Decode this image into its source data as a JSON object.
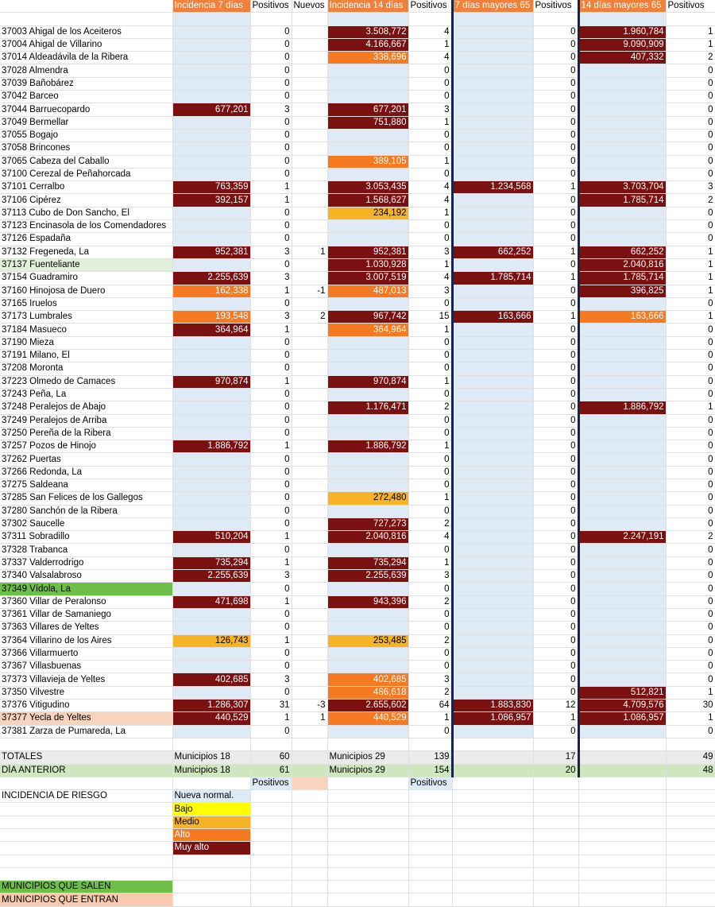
{
  "headers": [
    "",
    "Incidencia 7 días",
    "Positivos",
    "Nuevos",
    "Incidencia 14 días",
    "Positivos",
    "7 días mayores 65",
    "Positivos",
    "14 días mayores 65",
    "Positivos"
  ],
  "levels": {
    "nueva": "#deeaf6",
    "bajo": "#ffff00",
    "medio": "#f5b325",
    "alto": "#f57a22",
    "muyalto": "#7a1010"
  },
  "rows": [
    {
      "name": "37003 Ahigal de los Aceiteros",
      "i7": "",
      "l7": "",
      "p7": "0",
      "n": "",
      "i14": "3.508,772",
      "l14": "muyalto",
      "p14": "4",
      "m7": "",
      "lm7": "",
      "pm7": "0",
      "m14": "1.960,784",
      "lm14": "muyalto",
      "pm14": "1",
      "mark": ""
    },
    {
      "name": "37004 Ahigal de Villarino",
      "i7": "",
      "l7": "",
      "p7": "0",
      "n": "",
      "i14": "4.166,667",
      "l14": "muyalto",
      "p14": "1",
      "m7": "",
      "lm7": "",
      "pm7": "0",
      "m14": "9.090,909",
      "lm14": "muyalto",
      "pm14": "1",
      "mark": ""
    },
    {
      "name": "37014 Aldeadávila de la Ribera",
      "i7": "",
      "l7": "",
      "p7": "0",
      "n": "",
      "i14": "338,696",
      "l14": "alto",
      "p14": "4",
      "m7": "",
      "lm7": "",
      "pm7": "0",
      "m14": "407,332",
      "lm14": "muyalto",
      "pm14": "2",
      "mark": ""
    },
    {
      "name": "37028 Almendra",
      "i7": "",
      "l7": "",
      "p7": "0",
      "n": "",
      "i14": "",
      "l14": "",
      "p14": "0",
      "m7": "",
      "lm7": "",
      "pm7": "0",
      "m14": "",
      "lm14": "",
      "pm14": "0",
      "mark": ""
    },
    {
      "name": "37039 Bañobárez",
      "i7": "",
      "l7": "",
      "p7": "0",
      "n": "",
      "i14": "",
      "l14": "",
      "p14": "0",
      "m7": "",
      "lm7": "",
      "pm7": "0",
      "m14": "",
      "lm14": "",
      "pm14": "0",
      "mark": ""
    },
    {
      "name": "37042 Barceo",
      "i7": "",
      "l7": "",
      "p7": "0",
      "n": "",
      "i14": "",
      "l14": "",
      "p14": "0",
      "m7": "",
      "lm7": "",
      "pm7": "0",
      "m14": "",
      "lm14": "",
      "pm14": "0",
      "mark": ""
    },
    {
      "name": "37044 Barruecopardo",
      "i7": "677,201",
      "l7": "muyalto",
      "p7": "3",
      "n": "",
      "i14": "677,201",
      "l14": "muyalto",
      "p14": "3",
      "m7": "",
      "lm7": "",
      "pm7": "0",
      "m14": "",
      "lm14": "",
      "pm14": "0",
      "mark": ""
    },
    {
      "name": "37049 Bermellar",
      "i7": "",
      "l7": "",
      "p7": "0",
      "n": "",
      "i14": "751,880",
      "l14": "muyalto",
      "p14": "1",
      "m7": "",
      "lm7": "",
      "pm7": "0",
      "m14": "",
      "lm14": "",
      "pm14": "0",
      "mark": ""
    },
    {
      "name": "37055 Bogajo",
      "i7": "",
      "l7": "",
      "p7": "0",
      "n": "",
      "i14": "",
      "l14": "",
      "p14": "0",
      "m7": "",
      "lm7": "",
      "pm7": "0",
      "m14": "",
      "lm14": "",
      "pm14": "0",
      "mark": ""
    },
    {
      "name": "37058 Brincones",
      "i7": "",
      "l7": "",
      "p7": "0",
      "n": "",
      "i14": "",
      "l14": "",
      "p14": "0",
      "m7": "",
      "lm7": "",
      "pm7": "0",
      "m14": "",
      "lm14": "",
      "pm14": "0",
      "mark": ""
    },
    {
      "name": "37065 Cabeza del Caballo",
      "i7": "",
      "l7": "",
      "p7": "0",
      "n": "",
      "i14": "389,105",
      "l14": "alto",
      "p14": "1",
      "m7": "",
      "lm7": "",
      "pm7": "0",
      "m14": "",
      "lm14": "",
      "pm14": "0",
      "mark": ""
    },
    {
      "name": "37100 Cerezal de Peñahorcada",
      "i7": "",
      "l7": "",
      "p7": "0",
      "n": "",
      "i14": "",
      "l14": "",
      "p14": "0",
      "m7": "",
      "lm7": "",
      "pm7": "0",
      "m14": "",
      "lm14": "",
      "pm14": "0",
      "mark": ""
    },
    {
      "name": "37101 Cerralbo",
      "i7": "763,359",
      "l7": "muyalto",
      "p7": "1",
      "n": "",
      "i14": "3.053,435",
      "l14": "muyalto",
      "p14": "4",
      "m7": "1.234,568",
      "lm7": "muyalto",
      "pm7": "1",
      "m14": "3.703,704",
      "lm14": "muyalto",
      "pm14": "3",
      "mark": ""
    },
    {
      "name": "37106 Cipérez",
      "i7": "392,157",
      "l7": "muyalto",
      "p7": "1",
      "n": "",
      "i14": "1.568,627",
      "l14": "muyalto",
      "p14": "4",
      "m7": "",
      "lm7": "",
      "pm7": "0",
      "m14": "1.785,714",
      "lm14": "muyalto",
      "pm14": "2",
      "mark": ""
    },
    {
      "name": "37113 Cubo de Don Sancho, El",
      "i7": "",
      "l7": "",
      "p7": "0",
      "n": "",
      "i14": "234,192",
      "l14": "medio",
      "p14": "1",
      "m7": "",
      "lm7": "",
      "pm7": "0",
      "m14": "",
      "lm14": "",
      "pm14": "0",
      "mark": ""
    },
    {
      "name": "37123 Encinasola de los Comendadores",
      "i7": "",
      "l7": "",
      "p7": "0",
      "n": "",
      "i14": "",
      "l14": "",
      "p14": "0",
      "m7": "",
      "lm7": "",
      "pm7": "0",
      "m14": "",
      "lm14": "",
      "pm14": "0",
      "mark": ""
    },
    {
      "name": "37126 Espadaña",
      "i7": "",
      "l7": "",
      "p7": "0",
      "n": "",
      "i14": "",
      "l14": "",
      "p14": "0",
      "m7": "",
      "lm7": "",
      "pm7": "0",
      "m14": "",
      "lm14": "",
      "pm14": "0",
      "mark": ""
    },
    {
      "name": "37132 Fregeneda, La",
      "i7": "952,381",
      "l7": "muyalto",
      "p7": "3",
      "n": "1",
      "i14": "952,381",
      "l14": "muyalto",
      "p14": "3",
      "m7": "662,252",
      "lm7": "muyalto",
      "pm7": "1",
      "m14": "662,252",
      "lm14": "muyalto",
      "pm14": "1",
      "mark": ""
    },
    {
      "name": "37137 Fuenteliante",
      "i7": "",
      "l7": "",
      "p7": "0",
      "n": "",
      "i14": "1.030,928",
      "l14": "muyalto",
      "p14": "1",
      "m7": "",
      "lm7": "",
      "pm7": "0",
      "m14": "2.040,816",
      "lm14": "muyalto",
      "pm14": "1",
      "mark": "green-light"
    },
    {
      "name": "37154 Guadramiro",
      "i7": "2.255,639",
      "l7": "muyalto",
      "p7": "3",
      "n": "",
      "i14": "3.007,519",
      "l14": "muyalto",
      "p14": "4",
      "m7": "1.785,714",
      "lm7": "muyalto",
      "pm7": "1",
      "m14": "1.785,714",
      "lm14": "muyalto",
      "pm14": "1",
      "mark": ""
    },
    {
      "name": "37160 Hinojosa de Duero",
      "i7": "162,338",
      "l7": "alto",
      "p7": "1",
      "n": "-1",
      "i14": "487,013",
      "l14": "alto",
      "p14": "3",
      "m7": "",
      "lm7": "",
      "pm7": "0",
      "m14": "396,825",
      "lm14": "muyalto",
      "pm14": "1",
      "mark": ""
    },
    {
      "name": "37165 Iruelos",
      "i7": "",
      "l7": "",
      "p7": "0",
      "n": "",
      "i14": "",
      "l14": "",
      "p14": "0",
      "m7": "",
      "lm7": "",
      "pm7": "0",
      "m14": "",
      "lm14": "",
      "pm14": "0",
      "mark": ""
    },
    {
      "name": "37173 Lumbrales",
      "i7": "193,548",
      "l7": "alto",
      "p7": "3",
      "n": "2",
      "i14": "967,742",
      "l14": "muyalto",
      "p14": "15",
      "m7": "163,666",
      "lm7": "muyalto",
      "pm7": "1",
      "m14": "163,666",
      "lm14": "alto",
      "pm14": "1",
      "mark": ""
    },
    {
      "name": "37184 Masueco",
      "i7": "364,964",
      "l7": "muyalto",
      "p7": "1",
      "n": "",
      "i14": "364,964",
      "l14": "alto",
      "p14": "1",
      "m7": "",
      "lm7": "",
      "pm7": "0",
      "m14": "",
      "lm14": "",
      "pm14": "0",
      "mark": ""
    },
    {
      "name": "37190 Mieza",
      "i7": "",
      "l7": "",
      "p7": "0",
      "n": "",
      "i14": "",
      "l14": "",
      "p14": "0",
      "m7": "",
      "lm7": "",
      "pm7": "0",
      "m14": "",
      "lm14": "",
      "pm14": "0",
      "mark": ""
    },
    {
      "name": "37191 Milano, El",
      "i7": "",
      "l7": "",
      "p7": "0",
      "n": "",
      "i14": "",
      "l14": "",
      "p14": "0",
      "m7": "",
      "lm7": "",
      "pm7": "0",
      "m14": "",
      "lm14": "",
      "pm14": "0",
      "mark": ""
    },
    {
      "name": "37208 Moronta",
      "i7": "",
      "l7": "",
      "p7": "0",
      "n": "",
      "i14": "",
      "l14": "",
      "p14": "0",
      "m7": "",
      "lm7": "",
      "pm7": "0",
      "m14": "",
      "lm14": "",
      "pm14": "0",
      "mark": ""
    },
    {
      "name": "37223 Olmedo de Camaces",
      "i7": "970,874",
      "l7": "muyalto",
      "p7": "1",
      "n": "",
      "i14": "970,874",
      "l14": "muyalto",
      "p14": "1",
      "m7": "",
      "lm7": "",
      "pm7": "0",
      "m14": "",
      "lm14": "",
      "pm14": "0",
      "mark": ""
    },
    {
      "name": "37243 Peña, La",
      "i7": "",
      "l7": "",
      "p7": "0",
      "n": "",
      "i14": "",
      "l14": "",
      "p14": "0",
      "m7": "",
      "lm7": "",
      "pm7": "0",
      "m14": "",
      "lm14": "",
      "pm14": "0",
      "mark": ""
    },
    {
      "name": "37248 Peralejos de Abajo",
      "i7": "",
      "l7": "",
      "p7": "0",
      "n": "",
      "i14": "1.176,471",
      "l14": "muyalto",
      "p14": "2",
      "m7": "",
      "lm7": "",
      "pm7": "0",
      "m14": "1.886,792",
      "lm14": "muyalto",
      "pm14": "1",
      "mark": ""
    },
    {
      "name": "37249 Peralejos de Arriba",
      "i7": "",
      "l7": "",
      "p7": "0",
      "n": "",
      "i14": "",
      "l14": "",
      "p14": "0",
      "m7": "",
      "lm7": "",
      "pm7": "0",
      "m14": "",
      "lm14": "",
      "pm14": "0",
      "mark": ""
    },
    {
      "name": "37250 Pereña de la Ribera",
      "i7": "",
      "l7": "",
      "p7": "0",
      "n": "",
      "i14": "",
      "l14": "",
      "p14": "0",
      "m7": "",
      "lm7": "",
      "pm7": "0",
      "m14": "",
      "lm14": "",
      "pm14": "0",
      "mark": ""
    },
    {
      "name": "37257 Pozos de Hinojo",
      "i7": "1.886,792",
      "l7": "muyalto",
      "p7": "1",
      "n": "",
      "i14": "1.886,792",
      "l14": "muyalto",
      "p14": "1",
      "m7": "",
      "lm7": "",
      "pm7": "0",
      "m14": "",
      "lm14": "",
      "pm14": "0",
      "mark": ""
    },
    {
      "name": "37262 Puertas",
      "i7": "",
      "l7": "",
      "p7": "0",
      "n": "",
      "i14": "",
      "l14": "",
      "p14": "0",
      "m7": "",
      "lm7": "",
      "pm7": "0",
      "m14": "",
      "lm14": "",
      "pm14": "0",
      "mark": ""
    },
    {
      "name": "37266 Redonda, La",
      "i7": "",
      "l7": "",
      "p7": "0",
      "n": "",
      "i14": "",
      "l14": "",
      "p14": "0",
      "m7": "",
      "lm7": "",
      "pm7": "0",
      "m14": "",
      "lm14": "",
      "pm14": "0",
      "mark": ""
    },
    {
      "name": "37275 Saldeana",
      "i7": "",
      "l7": "",
      "p7": "0",
      "n": "",
      "i14": "",
      "l14": "",
      "p14": "0",
      "m7": "",
      "lm7": "",
      "pm7": "0",
      "m14": "",
      "lm14": "",
      "pm14": "0",
      "mark": ""
    },
    {
      "name": "37285 San Felices de los Gallegos",
      "i7": "",
      "l7": "",
      "p7": "0",
      "n": "",
      "i14": "272,480",
      "l14": "medio",
      "p14": "1",
      "m7": "",
      "lm7": "",
      "pm7": "0",
      "m14": "",
      "lm14": "",
      "pm14": "0",
      "mark": ""
    },
    {
      "name": "37280 Sanchón de la Ribera",
      "i7": "",
      "l7": "",
      "p7": "0",
      "n": "",
      "i14": "",
      "l14": "",
      "p14": "0",
      "m7": "",
      "lm7": "",
      "pm7": "0",
      "m14": "",
      "lm14": "",
      "pm14": "0",
      "mark": ""
    },
    {
      "name": "37302 Saucelle",
      "i7": "",
      "l7": "",
      "p7": "0",
      "n": "",
      "i14": "727,273",
      "l14": "muyalto",
      "p14": "2",
      "m7": "",
      "lm7": "",
      "pm7": "0",
      "m14": "",
      "lm14": "",
      "pm14": "0",
      "mark": ""
    },
    {
      "name": "37311 Sobradillo",
      "i7": "510,204",
      "l7": "muyalto",
      "p7": "1",
      "n": "",
      "i14": "2.040,816",
      "l14": "muyalto",
      "p14": "4",
      "m7": "",
      "lm7": "",
      "pm7": "0",
      "m14": "2.247,191",
      "lm14": "muyalto",
      "pm14": "2",
      "mark": ""
    },
    {
      "name": "37328 Trabanca",
      "i7": "",
      "l7": "",
      "p7": "0",
      "n": "",
      "i14": "",
      "l14": "",
      "p14": "0",
      "m7": "",
      "lm7": "",
      "pm7": "0",
      "m14": "",
      "lm14": "",
      "pm14": "0",
      "mark": ""
    },
    {
      "name": "37337 Valderrodrigo",
      "i7": "735,294",
      "l7": "muyalto",
      "p7": "1",
      "n": "",
      "i14": "735,294",
      "l14": "muyalto",
      "p14": "1",
      "m7": "",
      "lm7": "",
      "pm7": "0",
      "m14": "",
      "lm14": "",
      "pm14": "0",
      "mark": ""
    },
    {
      "name": "37340 Valsalabroso",
      "i7": "2.255,639",
      "l7": "muyalto",
      "p7": "3",
      "n": "",
      "i14": "2.255,639",
      "l14": "muyalto",
      "p14": "3",
      "m7": "",
      "lm7": "",
      "pm7": "0",
      "m14": "",
      "lm14": "",
      "pm14": "0",
      "mark": ""
    },
    {
      "name": "37349 Vídola, La",
      "i7": "",
      "l7": "",
      "p7": "0",
      "n": "",
      "i14": "",
      "l14": "",
      "p14": "0",
      "m7": "",
      "lm7": "",
      "pm7": "0",
      "m14": "",
      "lm14": "",
      "pm14": "0",
      "mark": "sale"
    },
    {
      "name": "37360 Villar de Peralonso",
      "i7": "471,698",
      "l7": "muyalto",
      "p7": "1",
      "n": "",
      "i14": "943,396",
      "l14": "muyalto",
      "p14": "2",
      "m7": "",
      "lm7": "",
      "pm7": "0",
      "m14": "",
      "lm14": "",
      "pm14": "0",
      "mark": ""
    },
    {
      "name": "37361 Villar de Samaniego",
      "i7": "",
      "l7": "",
      "p7": "0",
      "n": "",
      "i14": "",
      "l14": "",
      "p14": "0",
      "m7": "",
      "lm7": "",
      "pm7": "0",
      "m14": "",
      "lm14": "",
      "pm14": "0",
      "mark": ""
    },
    {
      "name": "37363 Villares de Yeltes",
      "i7": "",
      "l7": "",
      "p7": "0",
      "n": "",
      "i14": "",
      "l14": "",
      "p14": "0",
      "m7": "",
      "lm7": "",
      "pm7": "0",
      "m14": "",
      "lm14": "",
      "pm14": "0",
      "mark": ""
    },
    {
      "name": "37364 Villarino de los Aires",
      "i7": "126,743",
      "l7": "medio",
      "p7": "1",
      "n": "",
      "i14": "253,485",
      "l14": "medio",
      "p14": "2",
      "m7": "",
      "lm7": "",
      "pm7": "0",
      "m14": "",
      "lm14": "",
      "pm14": "0",
      "mark": ""
    },
    {
      "name": "37366 Villarmuerto",
      "i7": "",
      "l7": "",
      "p7": "0",
      "n": "",
      "i14": "",
      "l14": "",
      "p14": "0",
      "m7": "",
      "lm7": "",
      "pm7": "0",
      "m14": "",
      "lm14": "",
      "pm14": "0",
      "mark": ""
    },
    {
      "name": "37367 Villasbuenas",
      "i7": "",
      "l7": "",
      "p7": "0",
      "n": "",
      "i14": "",
      "l14": "",
      "p14": "0",
      "m7": "",
      "lm7": "",
      "pm7": "0",
      "m14": "",
      "lm14": "",
      "pm14": "0",
      "mark": ""
    },
    {
      "name": "37373 Villavieja de Yeltes",
      "i7": "402,685",
      "l7": "muyalto",
      "p7": "3",
      "n": "",
      "i14": "402,685",
      "l14": "alto",
      "p14": "3",
      "m7": "",
      "lm7": "",
      "pm7": "0",
      "m14": "",
      "lm14": "",
      "pm14": "0",
      "mark": ""
    },
    {
      "name": "37350 Vilvestre",
      "i7": "",
      "l7": "",
      "p7": "0",
      "n": "",
      "i14": "486,618",
      "l14": "alto",
      "p14": "2",
      "m7": "",
      "lm7": "",
      "pm7": "0",
      "m14": "512,821",
      "lm14": "muyalto",
      "pm14": "1",
      "mark": ""
    },
    {
      "name": "37376 Vitigudino",
      "i7": "1.286,307",
      "l7": "muyalto",
      "p7": "31",
      "n": "-3",
      "i14": "2.655,602",
      "l14": "muyalto",
      "p14": "64",
      "m7": "1.883,830",
      "lm7": "muyalto",
      "pm7": "12",
      "m14": "4.709,576",
      "lm14": "muyalto",
      "pm14": "30",
      "mark": ""
    },
    {
      "name": "37377 Yecla de Yeltes",
      "i7": "440,529",
      "l7": "muyalto",
      "p7": "1",
      "n": "1",
      "i14": "440,529",
      "l14": "alto",
      "p14": "1",
      "m7": "1.086,957",
      "lm7": "muyalto",
      "pm7": "1",
      "m14": "1.086,957",
      "lm14": "muyalto",
      "pm14": "1",
      "mark": "entra"
    },
    {
      "name": "37381 Zarza de Pumareda, La",
      "i7": "",
      "l7": "",
      "p7": "0",
      "n": "",
      "i14": "",
      "l14": "",
      "p14": "0",
      "m7": "",
      "lm7": "",
      "pm7": "0",
      "m14": "",
      "lm14": "",
      "pm14": "0",
      "mark": ""
    }
  ],
  "totals": {
    "label": "TOTALES",
    "i7": "Municipios 18",
    "p7": "60",
    "i14": "Municipios 29",
    "p14": "139",
    "pm7": "17",
    "pm14": "49"
  },
  "prev": {
    "label": "DÍA ANTERIOR",
    "i7": "Municipios 18",
    "p7": "61",
    "i14": "Municipios 29",
    "p14": "154",
    "pm7": "20",
    "pm14": "48"
  },
  "positivos_label": "Positivos",
  "legend": {
    "title": "INCIDENCIA DE RIESGO",
    "items": [
      {
        "label": "Nueva normal.",
        "lvl": "nueva"
      },
      {
        "label": "Bajo",
        "lvl": "bajo"
      },
      {
        "label": "Medio",
        "lvl": "medio"
      },
      {
        "label": "Alto",
        "lvl": "alto"
      },
      {
        "label": "Muy alto",
        "lvl": "muyalto"
      }
    ]
  },
  "salen_label": "MUNICIPIOS QUE SALEN",
  "entran_label": "MUNICIPIOS QUE ENTRAN"
}
